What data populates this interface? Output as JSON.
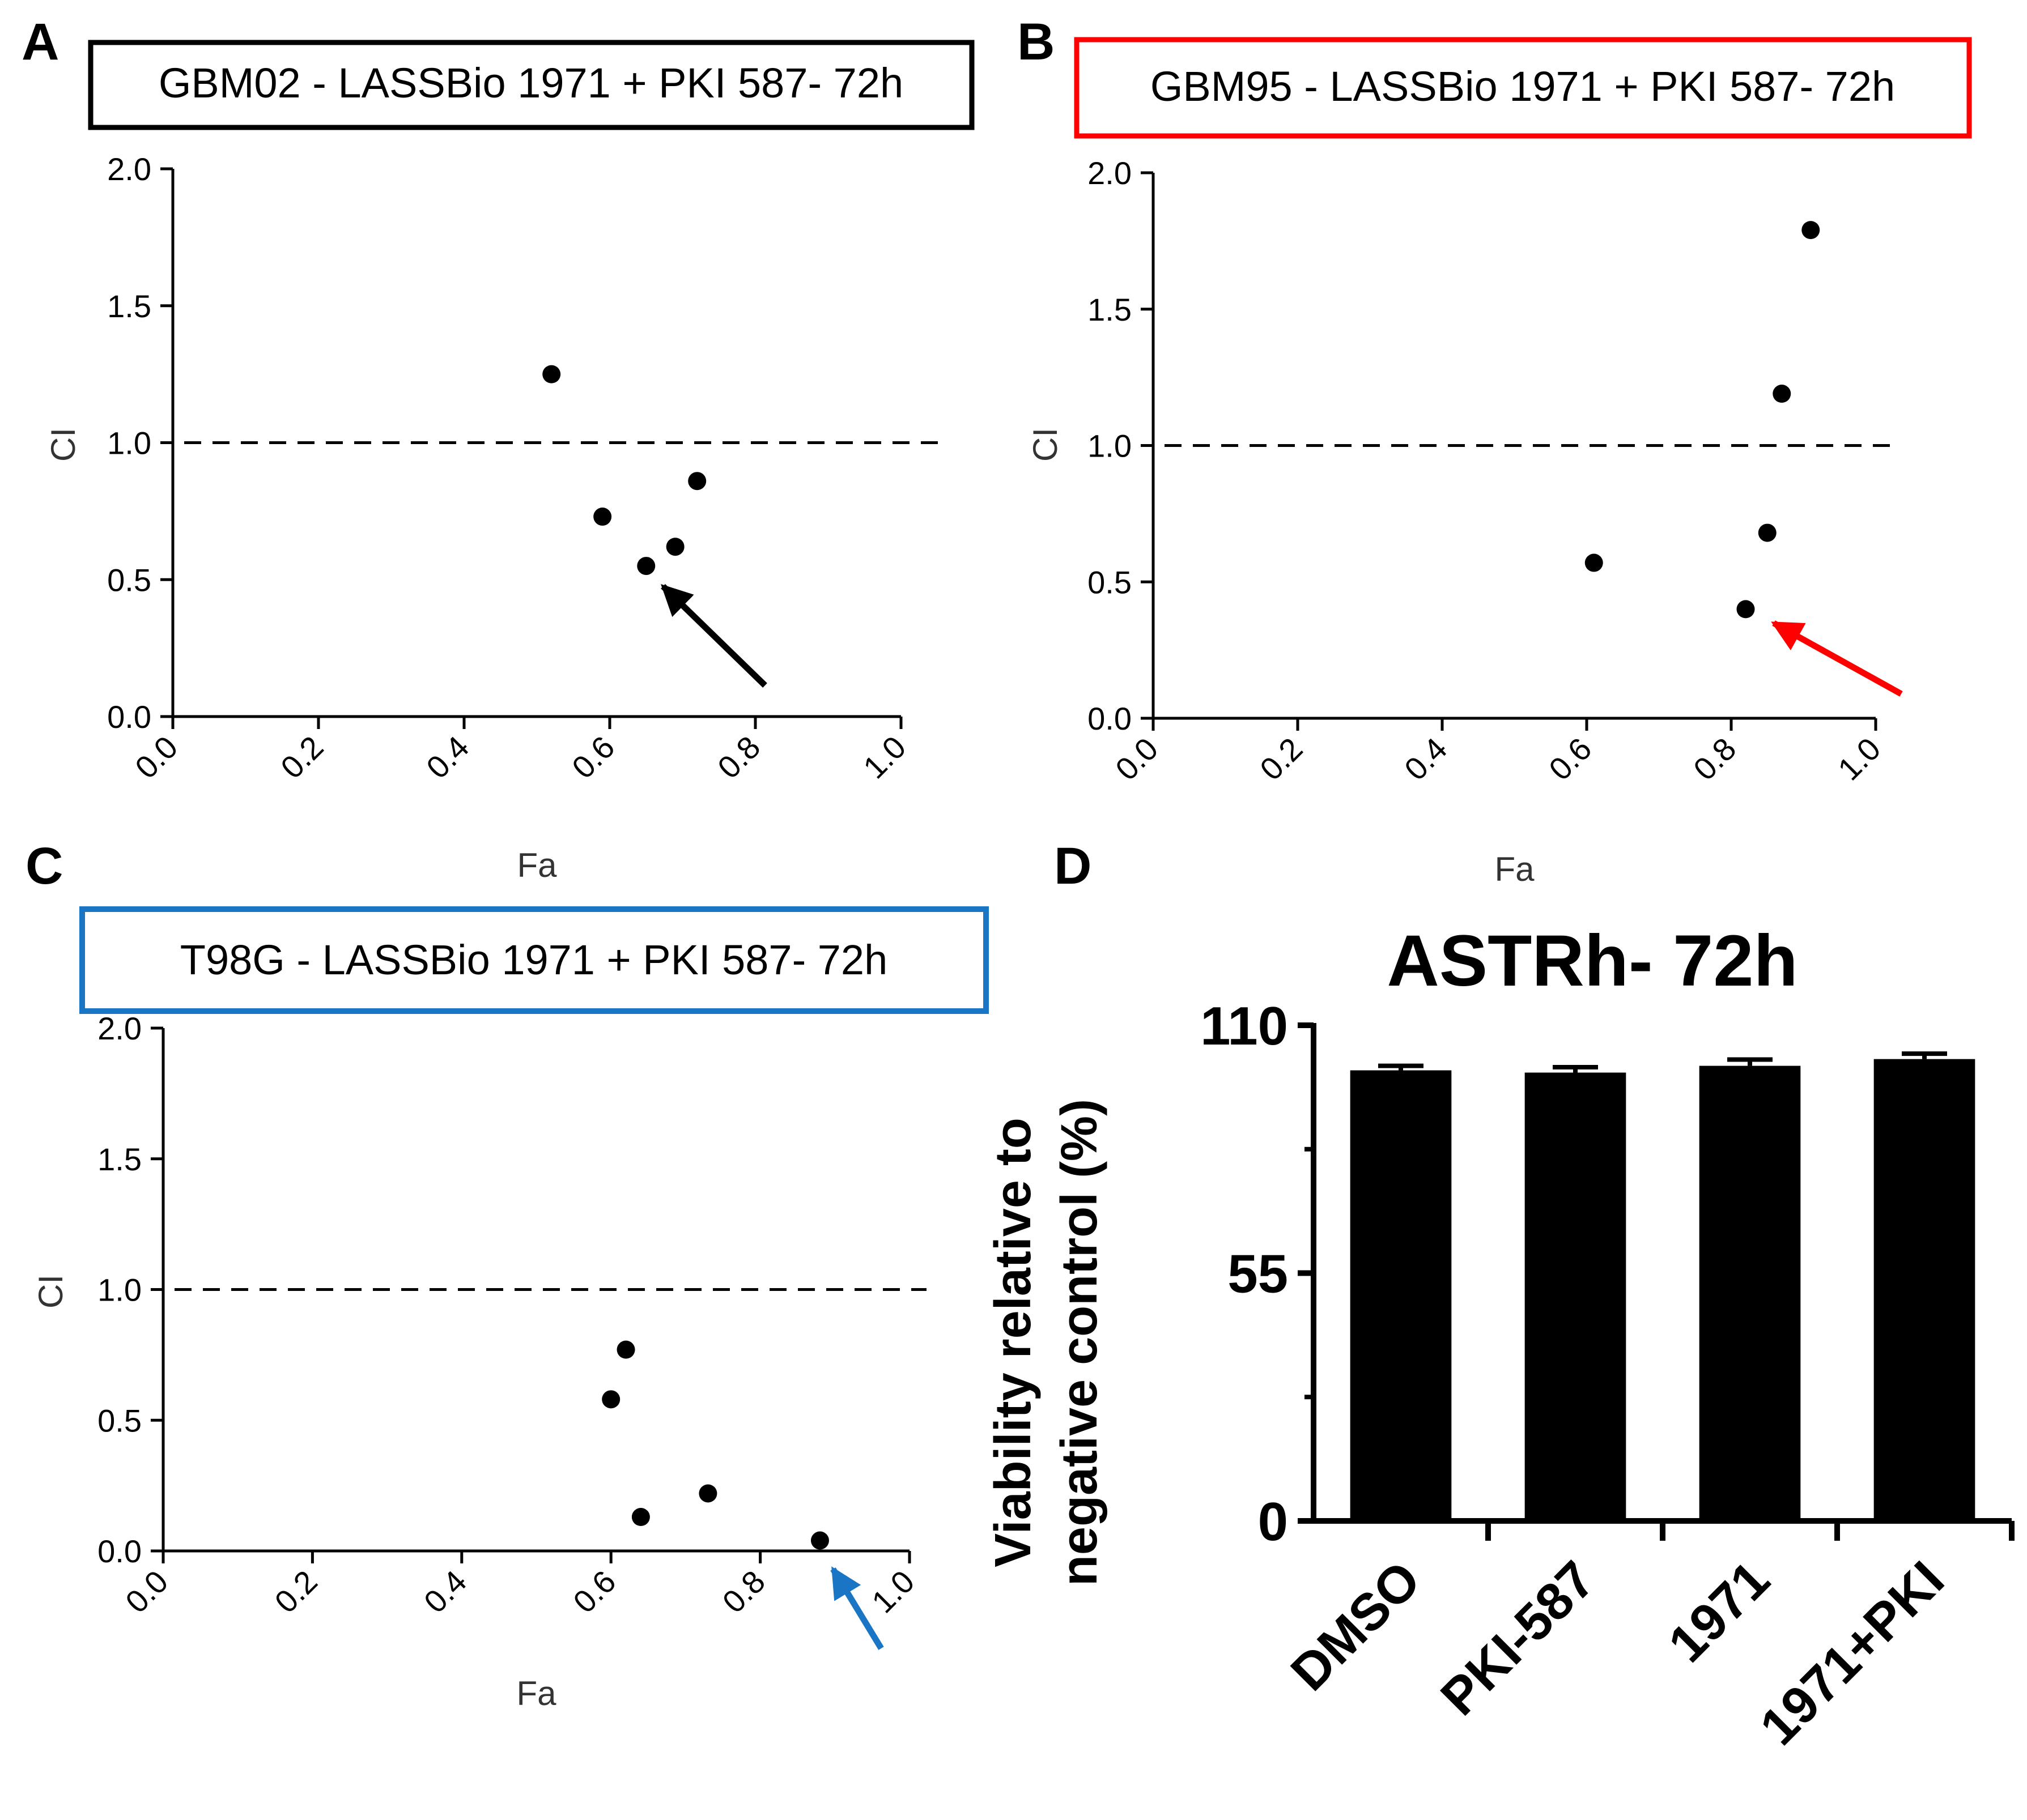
{
  "chart_data": [
    {
      "panel": "A",
      "type": "scatter",
      "title": "GBM02 - LASSBio 1971 + PKI 587- 72h",
      "title_box_color": "#000000",
      "arrow_color": "#000000",
      "xlabel": "Fa",
      "ylabel": "CI",
      "xlim": [
        0.0,
        1.0
      ],
      "ylim": [
        0.0,
        2.0
      ],
      "x_ticks": [
        "0.0",
        "0.2",
        "0.4",
        "0.6",
        "0.8",
        "1.0"
      ],
      "y_ticks": [
        "0.0",
        "0.5",
        "1.0",
        "1.5",
        "2.0"
      ],
      "reference_line_y": 1.0,
      "points": [
        {
          "x": 0.52,
          "y": 1.25
        },
        {
          "x": 0.59,
          "y": 0.73
        },
        {
          "x": 0.65,
          "y": 0.55
        },
        {
          "x": 0.69,
          "y": 0.62
        },
        {
          "x": 0.72,
          "y": 0.86
        }
      ],
      "highlighted_point": {
        "x": 0.65,
        "y": 0.55
      }
    },
    {
      "panel": "B",
      "type": "scatter",
      "title": "GBM95 - LASSBio 1971 + PKI 587- 72h",
      "title_box_color": "#ff0000",
      "arrow_color": "#ff0000",
      "xlabel": "Fa",
      "ylabel": "CI",
      "xlim": [
        0.0,
        1.0
      ],
      "ylim": [
        0.0,
        2.0
      ],
      "x_ticks": [
        "0.0",
        "0.2",
        "0.4",
        "0.6",
        "0.8",
        "1.0"
      ],
      "y_ticks": [
        "0.0",
        "0.5",
        "1.0",
        "1.5",
        "2.0"
      ],
      "reference_line_y": 1.0,
      "points": [
        {
          "x": 0.61,
          "y": 0.57
        },
        {
          "x": 0.82,
          "y": 0.4
        },
        {
          "x": 0.85,
          "y": 0.68
        },
        {
          "x": 0.87,
          "y": 1.19
        },
        {
          "x": 0.91,
          "y": 1.79
        }
      ],
      "highlighted_point": {
        "x": 0.82,
        "y": 0.4
      }
    },
    {
      "panel": "C",
      "type": "scatter",
      "title": "T98G - LASSBio 1971 + PKI 587- 72h",
      "title_box_color": "#1a75c4",
      "arrow_color": "#1a75c4",
      "xlabel": "Fa",
      "ylabel": "CI",
      "xlim": [
        0.0,
        1.0
      ],
      "ylim": [
        0.0,
        2.0
      ],
      "x_ticks": [
        "0.0",
        "0.2",
        "0.4",
        "0.6",
        "0.8",
        "1.0"
      ],
      "y_ticks": [
        "0.0",
        "0.5",
        "1.0",
        "1.5",
        "2.0"
      ],
      "reference_line_y": 1.0,
      "points": [
        {
          "x": 0.6,
          "y": 0.58
        },
        {
          "x": 0.62,
          "y": 0.77
        },
        {
          "x": 0.64,
          "y": 0.13
        },
        {
          "x": 0.73,
          "y": 0.22
        },
        {
          "x": 0.88,
          "y": 0.04
        }
      ],
      "highlighted_point": {
        "x": 0.88,
        "y": 0.04
      }
    },
    {
      "panel": "D",
      "type": "bar",
      "title": "ASTRh- 72h",
      "xlabel": "",
      "ylabel_lines": [
        "Viability relative to",
        "negative control (%)"
      ],
      "categories": [
        "DMSO",
        "PKI-587",
        "1971",
        "1971+PKI"
      ],
      "values": [
        100,
        99.5,
        101,
        102.5
      ],
      "errors": [
        1.0,
        1.2,
        1.4,
        1.2
      ],
      "ylim": [
        0,
        110
      ],
      "y_ticks": [
        "0",
        "55",
        "110"
      ],
      "bar_color": "#000000"
    }
  ]
}
